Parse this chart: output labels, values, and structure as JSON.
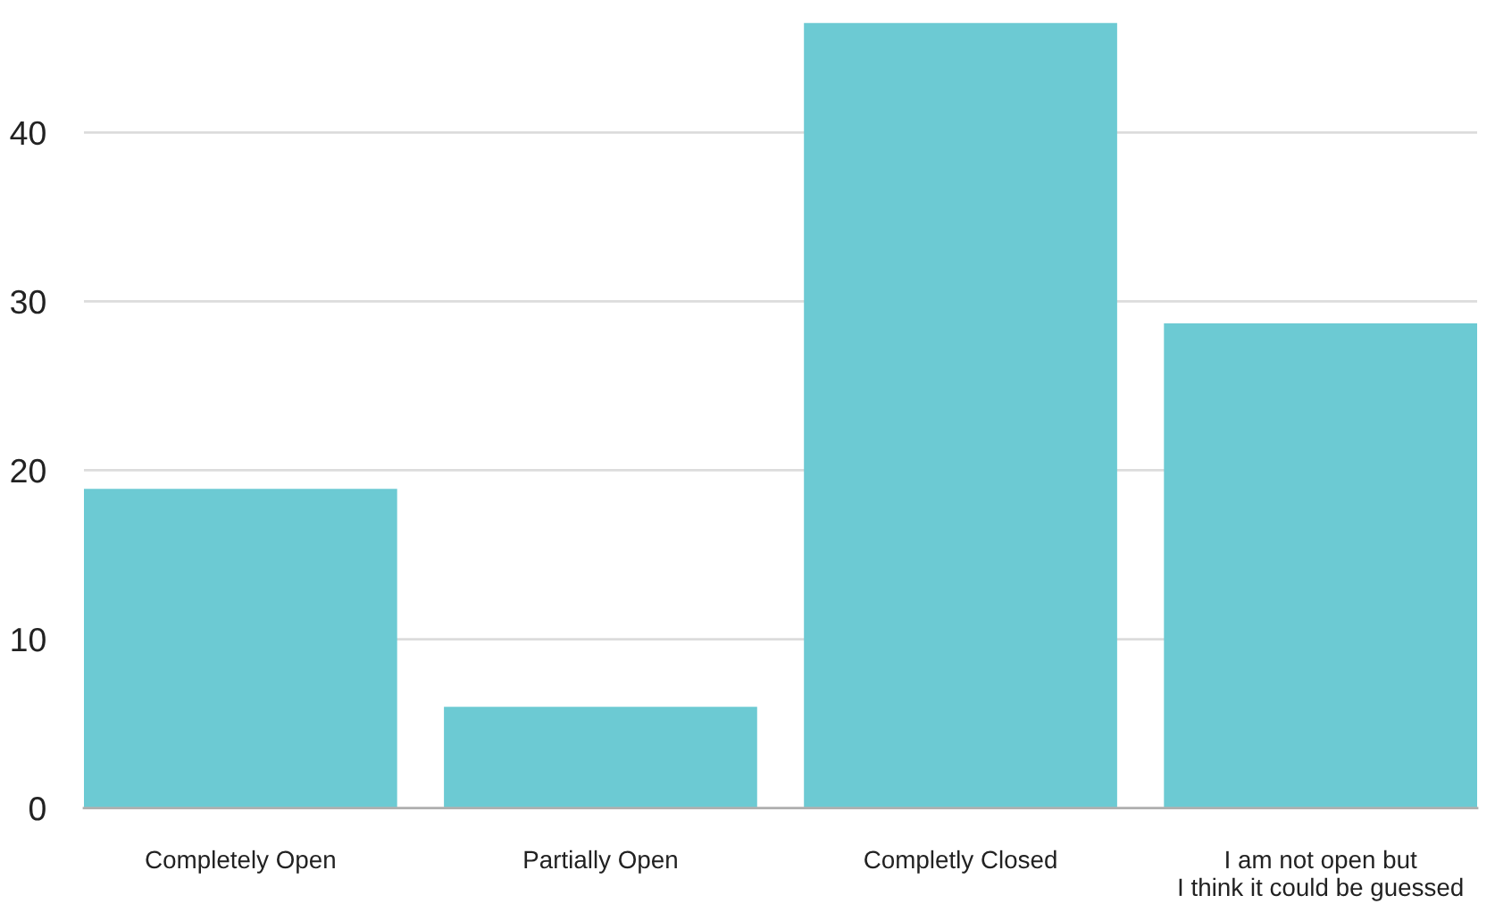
{
  "chart_data": {
    "type": "bar",
    "categories": [
      "Completely Open",
      "Partially Open",
      "Completly Closed",
      "I am not open but\nI think it could be guessed"
    ],
    "values": [
      18.9,
      6.0,
      46.5,
      28.7
    ],
    "color": "#6ccad3",
    "ylim": [
      0,
      46.5
    ],
    "yticks": [
      0,
      10,
      20,
      30,
      40
    ],
    "grid": "y",
    "legend": false
  }
}
